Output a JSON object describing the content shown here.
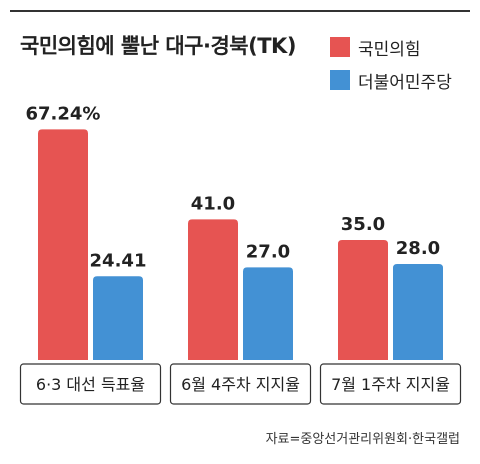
{
  "chart_data": {
    "type": "bar",
    "title": "국민의힘에 뿔난 대구·경북(TK)",
    "categories": [
      "6·3 대선 득표율",
      "6월 4주차 지지율",
      "7월 1주차 지지율"
    ],
    "series": [
      {
        "name": "국민의힘",
        "values": [
          67.24,
          41.0,
          35.0
        ],
        "labels": [
          "67.24%",
          "41.0",
          "35.0"
        ]
      },
      {
        "name": "더불어민주당",
        "values": [
          24.41,
          27.0,
          28.0
        ],
        "labels": [
          "24.41",
          "27.0",
          "28.0"
        ]
      }
    ],
    "legend_position": "top-right",
    "colors": {
      "국민의힘": "#e65452",
      "더불어민주당": "#4391d4"
    },
    "grid": false,
    "source": "자료=중앙선거관리위원회·한국갤럽"
  }
}
